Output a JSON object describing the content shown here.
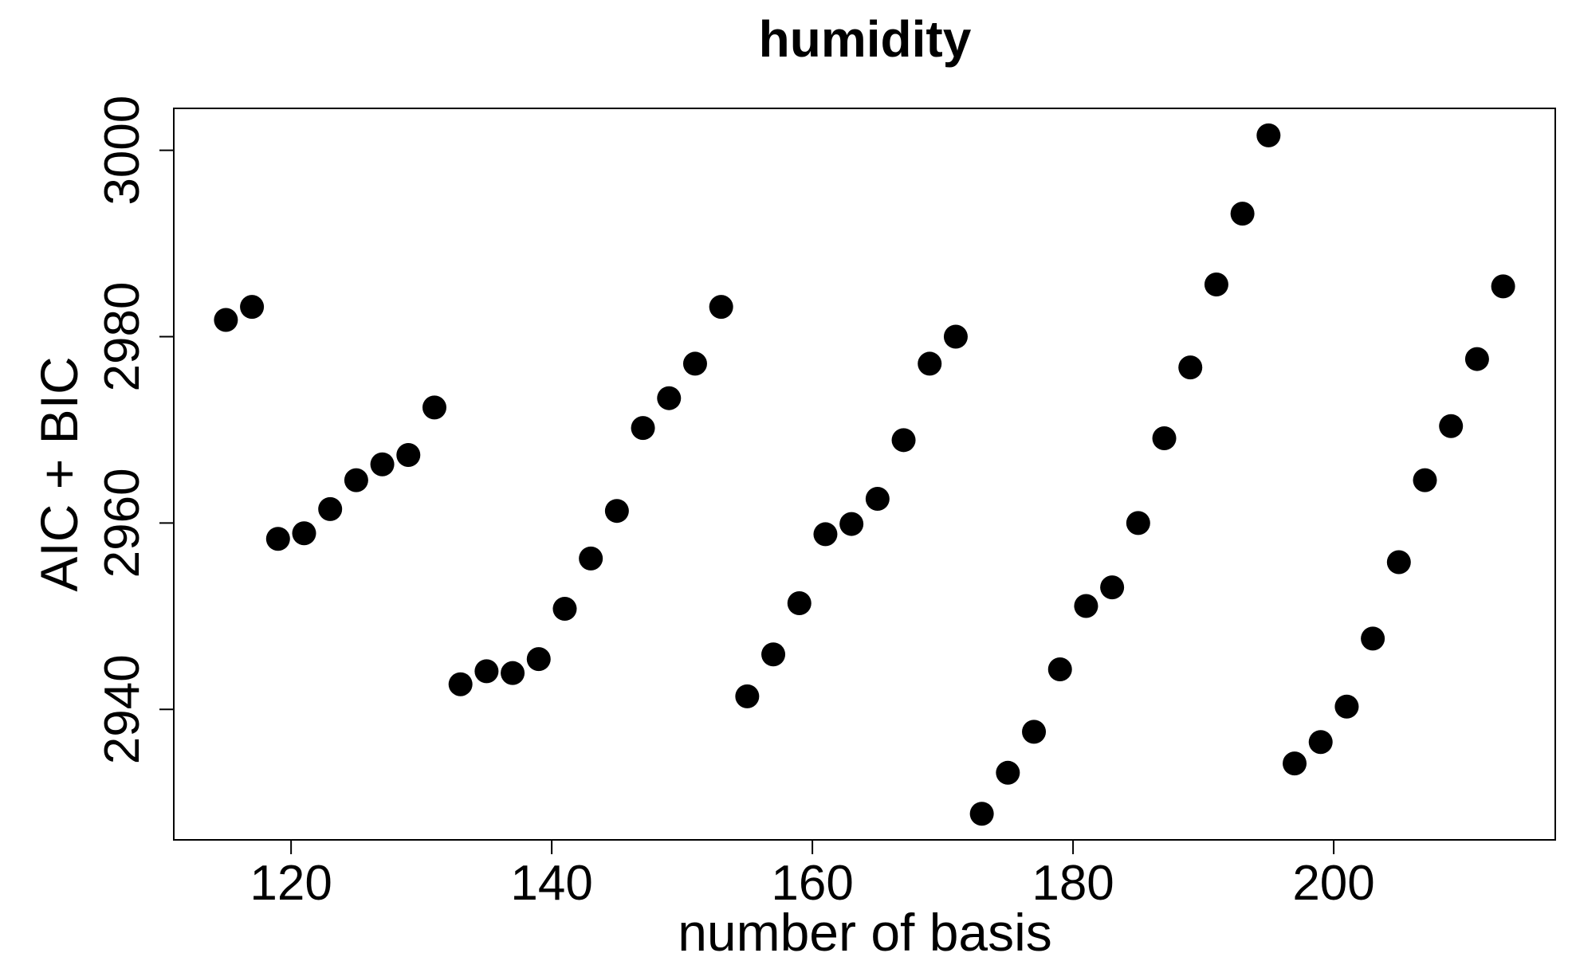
{
  "chart_data": {
    "type": "scatter",
    "title": "humidity",
    "xlabel": "number of basis",
    "ylabel": "AIC + BIC",
    "xlim": [
      111,
      217
    ],
    "ylim": [
      2926,
      3004.5
    ],
    "x_ticks": [
      120,
      140,
      160,
      180,
      200
    ],
    "y_ticks": [
      2940,
      2960,
      2980,
      3000
    ],
    "grid": false,
    "legend": "none",
    "marker_color": "#000000",
    "series": [
      {
        "x": [
          115,
          117,
          119,
          121,
          123,
          125,
          127,
          129,
          131,
          133,
          135,
          137,
          139,
          141,
          143,
          145,
          147,
          149,
          151,
          153,
          155,
          157,
          159,
          161,
          163,
          165,
          167,
          169,
          171,
          173,
          175,
          177,
          179,
          181,
          183,
          185,
          187,
          189,
          191,
          193,
          195,
          197,
          199,
          201,
          203,
          205,
          207,
          209,
          211,
          213
        ],
        "y": [
          2981.8,
          2983.2,
          2958.3,
          2958.9,
          2961.5,
          2964.6,
          2966.3,
          2967.3,
          2972.4,
          2942.7,
          2944.1,
          2943.9,
          2945.4,
          2950.8,
          2956.2,
          2961.3,
          2970.2,
          2973.4,
          2977.1,
          2983.2,
          2941.4,
          2945.9,
          2951.4,
          2958.8,
          2959.9,
          2962.6,
          2968.9,
          2977.1,
          2980.0,
          2928.8,
          2933.2,
          2937.6,
          2944.3,
          2951.1,
          2953.1,
          2960.0,
          2969.1,
          2976.7,
          2985.6,
          2993.2,
          3001.6,
          2934.2,
          2936.5,
          2940.3,
          2947.6,
          2955.8,
          2964.6,
          2970.4,
          2977.6,
          2985.4
        ]
      }
    ]
  }
}
